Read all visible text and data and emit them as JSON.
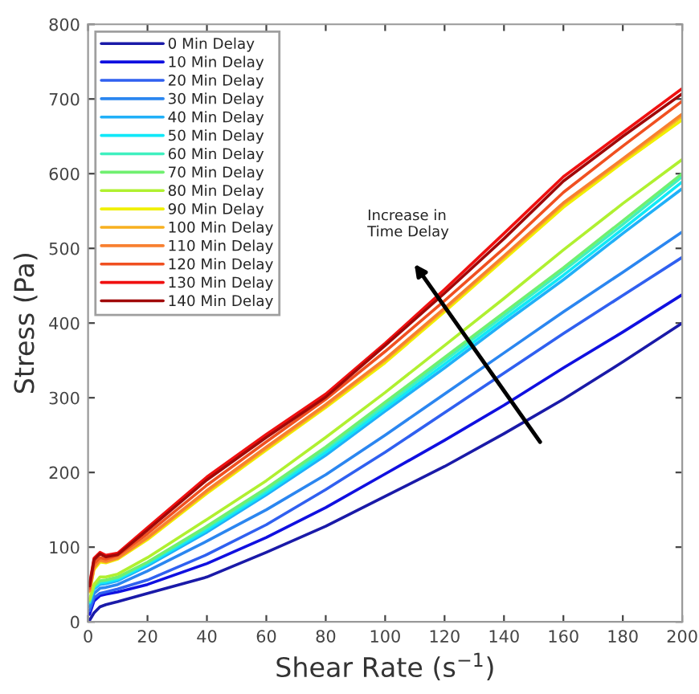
{
  "chart_data": {
    "type": "line",
    "xlabel": "Shear Rate (s$^{−1}$)",
    "ylabel": "Stress (Pa)",
    "x": [
      0.5,
      2,
      4,
      6,
      10,
      20,
      40,
      60,
      80,
      100,
      120,
      140,
      160,
      180,
      200
    ],
    "xlim": [
      0,
      200
    ],
    "xticks": [
      0,
      20,
      40,
      60,
      80,
      100,
      120,
      140,
      160,
      180,
      200
    ],
    "ylim": [
      0,
      800
    ],
    "yticks": [
      0,
      100,
      200,
      300,
      400,
      500,
      600,
      700,
      800
    ],
    "grid": false,
    "legend": "top left",
    "marker": "none",
    "line_style": "solid",
    "annotations": [
      "Increase in\nTime Delay"
    ],
    "series": [
      {
        "name": "0 Min Delay",
        "color": "#1a1aa8",
        "values": [
          2,
          12,
          20,
          23,
          27,
          38,
          60,
          93,
          128,
          168,
          208,
          252,
          298,
          348,
          400
        ]
      },
      {
        "name": "10 Min Delay",
        "color": "#1010e0",
        "values": [
          10,
          28,
          35,
          37,
          40,
          50,
          78,
          113,
          153,
          198,
          243,
          290,
          340,
          388,
          438
        ]
      },
      {
        "name": "20 Min Delay",
        "color": "#3060f0",
        "values": [
          15,
          32,
          38,
          40,
          44,
          56,
          90,
          130,
          177,
          227,
          280,
          333,
          386,
          437,
          488
        ]
      },
      {
        "name": "30 Min Delay",
        "color": "#2b86f0",
        "values": [
          20,
          38,
          45,
          46,
          50,
          68,
          108,
          150,
          197,
          250,
          305,
          360,
          415,
          468,
          522
        ]
      },
      {
        "name": "40 Min Delay",
        "color": "#20b0f8",
        "values": [
          25,
          44,
          50,
          51,
          55,
          75,
          120,
          170,
          223,
          282,
          340,
          400,
          458,
          520,
          580
        ]
      },
      {
        "name": "50 Min Delay",
        "color": "#10e8f8",
        "values": [
          26,
          46,
          52,
          53,
          57,
          77,
          123,
          173,
          227,
          286,
          345,
          405,
          464,
          526,
          589
        ]
      },
      {
        "name": "60 Min Delay",
        "color": "#40f0c0",
        "values": [
          27,
          47,
          54,
          55,
          59,
          79,
          126,
          176,
          231,
          290,
          350,
          410,
          470,
          532,
          596
        ]
      },
      {
        "name": "70 Min Delay",
        "color": "#70f070",
        "values": [
          28,
          48,
          55,
          56,
          60,
          80,
          128,
          179,
          234,
          294,
          354,
          414,
          474,
          537,
          600
        ]
      },
      {
        "name": "80 Min Delay",
        "color": "#b0f030",
        "values": [
          30,
          50,
          60,
          60,
          64,
          86,
          137,
          189,
          247,
          307,
          370,
          433,
          498,
          560,
          619
        ]
      },
      {
        "name": "90 Min Delay",
        "color": "#f0f000",
        "values": [
          40,
          70,
          80,
          79,
          84,
          110,
          172,
          230,
          287,
          347,
          415,
          485,
          555,
          615,
          672
        ]
      },
      {
        "name": "100 Min Delay",
        "color": "#f8b020",
        "values": [
          41,
          72,
          82,
          80,
          85,
          112,
          174,
          232,
          289,
          350,
          418,
          488,
          559,
          618,
          677
        ]
      },
      {
        "name": "110 Min Delay",
        "color": "#f88030",
        "values": [
          42,
          73,
          83,
          81,
          86,
          113,
          176,
          234,
          291,
          352,
          420,
          490,
          561,
          620,
          680
        ]
      },
      {
        "name": "120 Min Delay",
        "color": "#f05020",
        "values": [
          45,
          78,
          86,
          84,
          89,
          118,
          183,
          241,
          298,
          362,
          430,
          500,
          575,
          637,
          697
        ]
      },
      {
        "name": "130 Min Delay",
        "color": "#f01010",
        "values": [
          50,
          85,
          93,
          89,
          92,
          126,
          194,
          251,
          305,
          373,
          445,
          520,
          596,
          655,
          714
        ]
      },
      {
        "name": "140 Min Delay",
        "color": "#a00808",
        "values": [
          48,
          83,
          91,
          87,
          90,
          123,
          190,
          247,
          301,
          370,
          440,
          513,
          590,
          650,
          707
        ]
      }
    ]
  }
}
